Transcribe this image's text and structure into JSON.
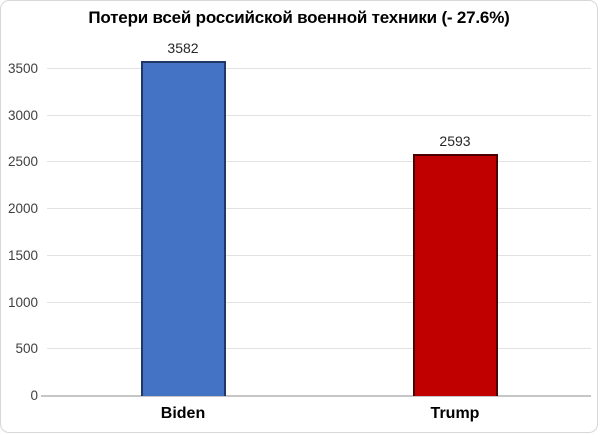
{
  "chart_data": {
    "type": "bar",
    "title": "Потери всей российской военной техники (- 27.6%)",
    "categories": [
      "Biden",
      "Trump"
    ],
    "values": [
      3582,
      2593
    ],
    "value_labels": [
      "3582",
      "2593"
    ],
    "ytick_labels": [
      "0",
      "500",
      "1000",
      "1500",
      "2000",
      "2500",
      "3000",
      "3500"
    ],
    "ylabel": "",
    "xlabel": "",
    "ylim": [
      0,
      3500
    ],
    "ytick_step": 500,
    "grid": true,
    "legend": "none",
    "bar_fill_colors": [
      "#4472c4",
      "#c00000"
    ],
    "bar_border_colors": [
      "#1f3864",
      "#4a0000"
    ],
    "gridline_color": "#e2e2e2",
    "axis_line_color": "#c6c6c6"
  }
}
